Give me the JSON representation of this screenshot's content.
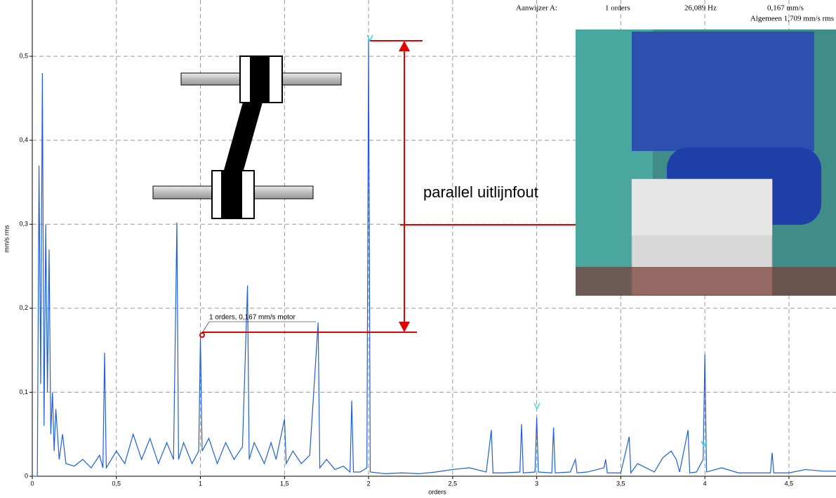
{
  "chart_data": {
    "type": "line",
    "header": [
      "Aanwijzer A:",
      "1 orders",
      "26,089 Hz",
      "0,167 mm/s",
      "Algemeen 1,709 mm/s rms"
    ],
    "x_label": "orders",
    "y_label": "mm/s rms",
    "annotations": [
      "1 orders, 0,167 mm/s motor",
      "parallel uitlijnfout"
    ],
    "xlim": [
      0,
      4.78
    ],
    "ylim": [
      0,
      0.567
    ],
    "xticks": [
      0,
      {
        "value": 0.5,
        "label": "0,5"
      },
      1,
      {
        "value": 1.5,
        "label": "1,5"
      },
      2,
      {
        "value": 2.5,
        "label": "2,5"
      },
      3,
      {
        "value": 3.5,
        "label": "3,5"
      },
      4,
      {
        "value": 4.5,
        "label": "4,5"
      }
    ],
    "yticks": [
      0,
      {
        "value": 0.1,
        "label": "0,1"
      },
      {
        "value": 0.2,
        "label": "0,2"
      },
      {
        "value": 0.3,
        "label": "0,3"
      },
      {
        "value": 0.4,
        "label": "0,4"
      },
      {
        "value": 0.5,
        "label": "0,5"
      }
    ],
    "grid": true,
    "series": [
      {
        "color": "#1f5fd6",
        "x": [
          0,
          0.03,
          0.04,
          0.05,
          0.06,
          0.07,
          0.08,
          0.09,
          0.1,
          0.11,
          0.12,
          0.13,
          0.14,
          0.16,
          0.18,
          0.2,
          0.25,
          0.3,
          0.35,
          0.4,
          0.42,
          0.43,
          0.44,
          0.5,
          0.55,
          0.6,
          0.65,
          0.7,
          0.75,
          0.8,
          0.84,
          0.86,
          0.87,
          0.9,
          0.95,
          0.99,
          1.0,
          1.01,
          1.05,
          1.1,
          1.15,
          1.2,
          1.25,
          1.28,
          1.29,
          1.32,
          1.38,
          1.42,
          1.45,
          1.5,
          1.51,
          1.55,
          1.6,
          1.65,
          1.7,
          1.71,
          1.75,
          1.8,
          1.85,
          1.89,
          1.9,
          1.91,
          1.95,
          1.99,
          2.0,
          2.01,
          2.1,
          2.2,
          2.3,
          2.4,
          2.5,
          2.6,
          2.7,
          2.73,
          2.74,
          2.8,
          2.9,
          2.91,
          2.92,
          2.99,
          3.0,
          3.01,
          3.09,
          3.1,
          3.11,
          3.2,
          3.23,
          3.24,
          3.3,
          3.4,
          3.41,
          3.42,
          3.5,
          3.55,
          3.56,
          3.6,
          3.7,
          3.75,
          3.8,
          3.83,
          3.85,
          3.9,
          3.91,
          3.95,
          3.99,
          4.0,
          4.01,
          4.1,
          4.2,
          4.3,
          4.39,
          4.4,
          4.41,
          4.5,
          4.6,
          4.7,
          4.78
        ],
        "values": [
          0,
          0,
          0.37,
          0.11,
          0.48,
          0.06,
          0.3,
          0.1,
          0.27,
          0.05,
          0.1,
          0.03,
          0.08,
          0.02,
          0.05,
          0.015,
          0.012,
          0.02,
          0.01,
          0.025,
          0.01,
          0.147,
          0.01,
          0.03,
          0.015,
          0.05,
          0.02,
          0.045,
          0.015,
          0.04,
          0.02,
          0.302,
          0.02,
          0.04,
          0.015,
          0.03,
          0.167,
          0.03,
          0.045,
          0.015,
          0.04,
          0.02,
          0.035,
          0.227,
          0.02,
          0.04,
          0.015,
          0.04,
          0.02,
          0.068,
          0.015,
          0.03,
          0.015,
          0.025,
          0.183,
          0.01,
          0.02,
          0.008,
          0.012,
          0.005,
          0.09,
          0.005,
          0.005,
          0.01,
          0.52,
          0.005,
          0.003,
          0.004,
          0.003,
          0.005,
          0.008,
          0.01,
          0.005,
          0.055,
          0.004,
          0.004,
          0.005,
          0.062,
          0.004,
          0.005,
          0.07,
          0.005,
          0.004,
          0.058,
          0.004,
          0.005,
          0.02,
          0.004,
          0.005,
          0.01,
          0.02,
          0.004,
          0.004,
          0.047,
          0.004,
          0.015,
          0.005,
          0.022,
          0.03,
          0.02,
          0.005,
          0.055,
          0.004,
          0.005,
          0.02,
          0.145,
          0.005,
          0.01,
          0.004,
          0.004,
          0.004,
          0.028,
          0.004,
          0.004,
          0.008,
          0.006,
          0.006
        ]
      }
    ]
  }
}
